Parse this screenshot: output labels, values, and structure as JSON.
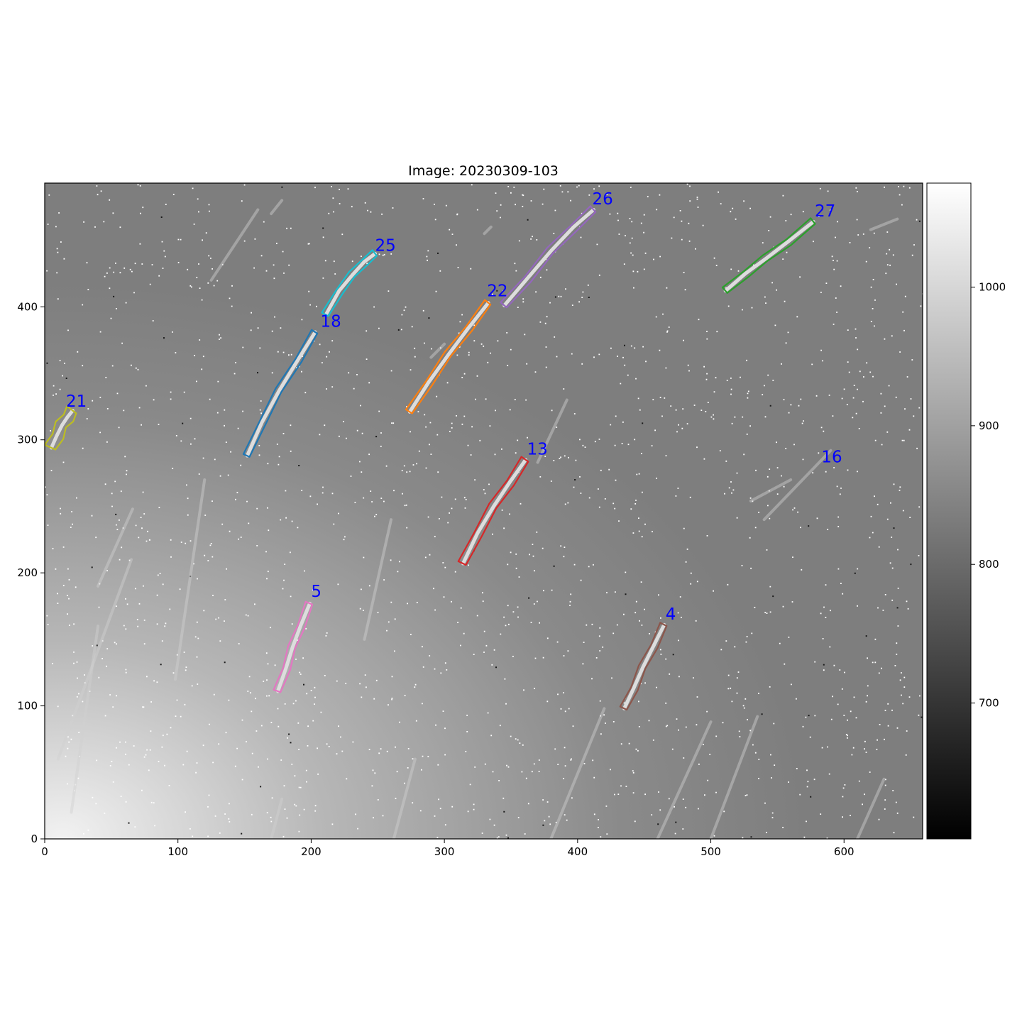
{
  "chart_data": {
    "type": "image",
    "title": "Image: 20230309-103",
    "xlim": [
      0,
      659
    ],
    "ylim": [
      0,
      493
    ],
    "xticks": [
      0,
      100,
      200,
      300,
      400,
      500,
      600
    ],
    "yticks": [
      0,
      100,
      200,
      300,
      400
    ],
    "colorbar": {
      "colormap": "gray",
      "range": [
        602,
        1075
      ],
      "ticks": [
        700,
        800,
        900,
        1000
      ]
    },
    "label_color": "#0000ff",
    "background_streaks": [
      {
        "x0": 125,
        "y0": 420,
        "x1": 160,
        "y1": 473
      },
      {
        "x0": 170,
        "y0": 470,
        "x1": 178,
        "y1": 480
      },
      {
        "x0": 330,
        "y0": 455,
        "x1": 335,
        "y1": 460
      },
      {
        "x0": 290,
        "y0": 362,
        "x1": 300,
        "y1": 372
      },
      {
        "x0": 620,
        "y0": 458,
        "x1": 640,
        "y1": 466
      },
      {
        "x0": 370,
        "y0": 283,
        "x1": 392,
        "y1": 330
      },
      {
        "x0": 540,
        "y0": 240,
        "x1": 590,
        "y1": 292
      },
      {
        "x0": 530,
        "y0": 254,
        "x1": 560,
        "y1": 270
      },
      {
        "x0": 10,
        "y0": 60,
        "x1": 65,
        "y1": 210
      },
      {
        "x0": 40,
        "y0": 190,
        "x1": 66,
        "y1": 248
      },
      {
        "x0": 20,
        "y0": 20,
        "x1": 40,
        "y1": 160
      },
      {
        "x0": 98,
        "y0": 120,
        "x1": 120,
        "y1": 270
      },
      {
        "x0": 240,
        "y0": 150,
        "x1": 260,
        "y1": 240
      },
      {
        "x0": 170,
        "y0": 0,
        "x1": 178,
        "y1": 30
      },
      {
        "x0": 262,
        "y0": 0,
        "x1": 278,
        "y1": 60
      },
      {
        "x0": 380,
        "y0": 0,
        "x1": 420,
        "y1": 98
      },
      {
        "x0": 460,
        "y0": 0,
        "x1": 500,
        "y1": 88
      },
      {
        "x0": 500,
        "y0": 0,
        "x1": 535,
        "y1": 92
      },
      {
        "x0": 610,
        "y0": 0,
        "x1": 630,
        "y1": 45
      }
    ],
    "objects": [
      {
        "label": "21",
        "color": "#bcbd22",
        "x": [
          5,
          9,
          13,
          17,
          21
        ],
        "y": [
          294,
          303,
          311,
          317,
          322
        ],
        "w": 4.2,
        "label_x": 16,
        "label_y": 325
      },
      {
        "label": "18",
        "color": "#1f77b4",
        "x": [
          152,
          163,
          176,
          190,
          203
        ],
        "y": [
          288,
          313,
          337,
          360,
          381
        ],
        "w": 2.4,
        "label_x": 207,
        "label_y": 385
      },
      {
        "label": "25",
        "color": "#17becf",
        "x": [
          211,
          221,
          231,
          240,
          248
        ],
        "y": [
          394,
          412,
          424,
          434,
          440
        ],
        "w": 2.6,
        "label_x": 248,
        "label_y": 442
      },
      {
        "label": "22",
        "color": "#ff7f0e",
        "x": [
          274,
          288,
          303,
          318,
          333
        ],
        "y": [
          321,
          343,
          364,
          384,
          403
        ],
        "w": 2.6,
        "label_x": 332,
        "label_y": 408
      },
      {
        "label": "26",
        "color": "#9467bd",
        "x": [
          345,
          362,
          380,
          397,
          412
        ],
        "y": [
          401,
          421,
          442,
          460,
          473
        ],
        "w": 2.8,
        "label_x": 411,
        "label_y": 477
      },
      {
        "label": "27",
        "color": "#2ca02c",
        "x": [
          511,
          526,
          541,
          558,
          577
        ],
        "y": [
          412,
          425,
          436,
          449,
          464
        ],
        "w": 2.6,
        "label_x": 578,
        "label_y": 468
      },
      {
        "label": "13",
        "color": "#d62728",
        "x": [
          314,
          325,
          337,
          349,
          361
        ],
        "y": [
          207,
          230,
          250,
          268,
          285
        ],
        "w": 3.0,
        "label_x": 362,
        "label_y": 289
      },
      {
        "label": "16",
        "color": "#0000ff",
        "x": [],
        "y": [],
        "w": 0,
        "label_x": 583,
        "label_y": 283
      },
      {
        "label": "5",
        "color": "#e377c2",
        "x": [
          175,
          181,
          186,
          192,
          199
        ],
        "y": [
          111,
          128,
          144,
          160,
          177
        ],
        "w": 2.6,
        "label_x": 200,
        "label_y": 182
      },
      {
        "label": "4",
        "color": "#8c564b",
        "x": [
          435,
          442,
          449,
          457,
          465
        ],
        "y": [
          98,
          113,
          129,
          145,
          161
        ],
        "w": 2.6,
        "label_x": 466,
        "label_y": 165
      }
    ]
  }
}
